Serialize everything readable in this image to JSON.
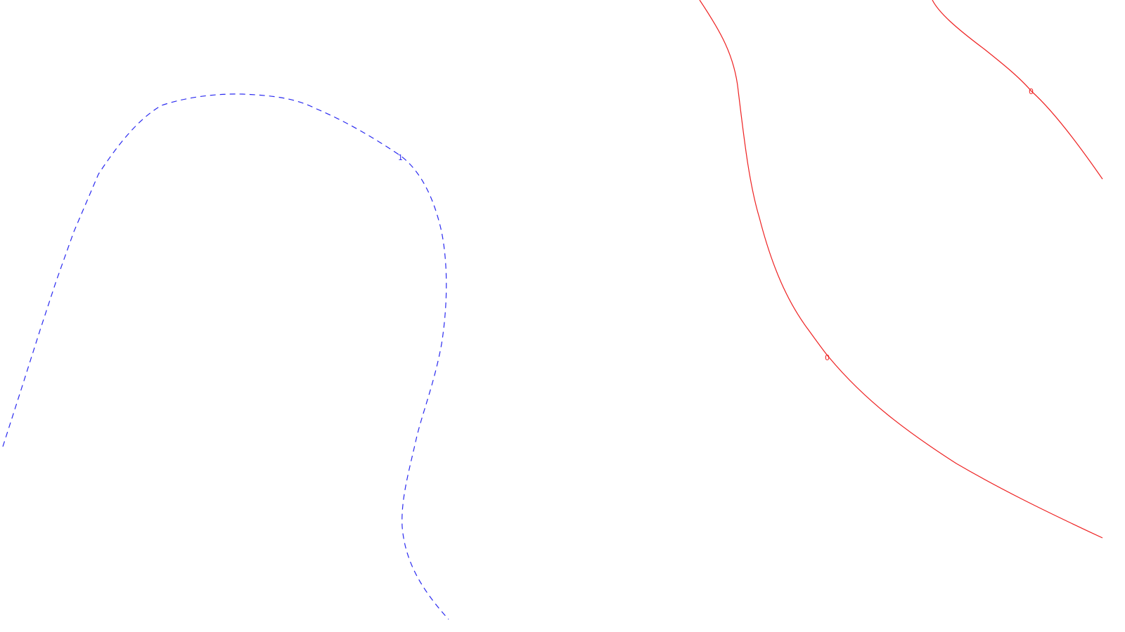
{
  "chart_data": {
    "type": "contour",
    "title": "",
    "xlabel": "",
    "ylabel": "",
    "grid": false,
    "legend": "none",
    "colors": {
      "negative_dashed": "#2a2af0",
      "zero_solid": "#ee2222",
      "background": "#ffffff"
    },
    "contours": [
      {
        "level_label": "1",
        "color": "#2a2af0",
        "line_style": "dashed"
      },
      {
        "level_label": "0",
        "color": "#ee2222",
        "line_style": "solid"
      },
      {
        "level_label": "0",
        "color": "#ee2222",
        "line_style": "solid"
      }
    ]
  }
}
